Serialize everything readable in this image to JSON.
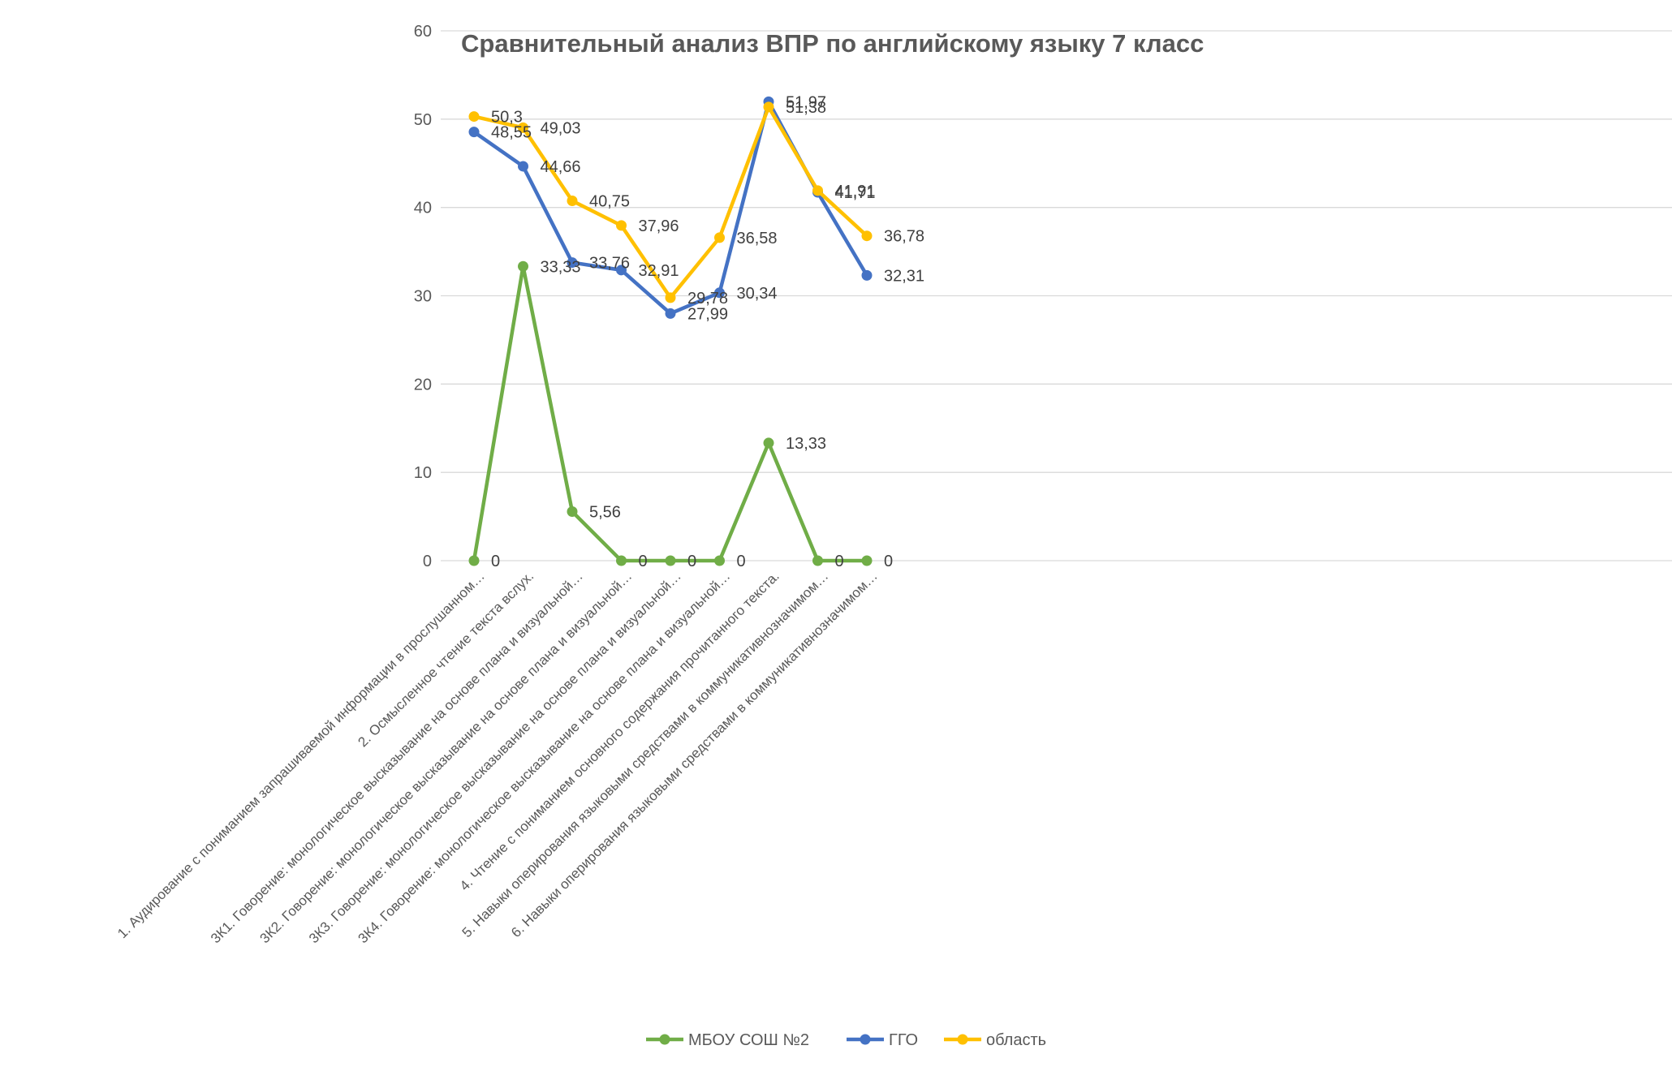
{
  "chart_data": {
    "type": "line",
    "title": "Сравнительный анализ ВПР по английскому языку 7 класс",
    "xlabel": "",
    "ylabel": "",
    "ylim": [
      0,
      60
    ],
    "yticks": [
      "0",
      "10",
      "20",
      "30",
      "40",
      "50",
      "60"
    ],
    "grid": true,
    "legend_position": "bottom",
    "categories": [
      "1. Аудирование с пониманием запрашиваемой информации в прослушанном…",
      "2. Осмысленное чтение текста вслух.",
      "3К1. Говорение: монологическое высказывание на основе плана и визуальной…",
      "3К2. Говорение: монологическое высказывание на основе плана и визуальной…",
      "3К3. Говорение: монологическое высказывание на основе плана и визуальной…",
      "3К4. Говорение: монологическое высказывание на основе плана и визуальной…",
      "4. Чтение с пониманием основного содержания прочитанного текста.",
      "5. Навыки оперирования языковыми средствами в коммуникативнозначимом…",
      "6. Навыки оперирования языковыми средствами в коммуникативнозначимом…"
    ],
    "series": [
      {
        "name": "МБОУ СОШ №2",
        "color": "#70ad47",
        "values": [
          0,
          33.33,
          5.56,
          0,
          0,
          0,
          13.33,
          0,
          0
        ],
        "labels": [
          "0",
          "33,33",
          "5,56",
          "0",
          "0",
          "0",
          "13,33",
          "0",
          "0"
        ]
      },
      {
        "name": "ГГО",
        "color": "#4472c4",
        "values": [
          48.55,
          44.66,
          33.76,
          32.91,
          27.99,
          30.34,
          51.97,
          41.71,
          32.31
        ],
        "labels": [
          "48,55",
          "44,66",
          "33,76",
          "32,91",
          "27,99",
          "30,34",
          "51,97",
          "41,71",
          "32,31"
        ]
      },
      {
        "name": "область",
        "color": "#ffc000",
        "values": [
          50.3,
          49.03,
          40.75,
          37.96,
          29.78,
          36.58,
          51.38,
          41.91,
          36.78
        ],
        "labels": [
          "50,3",
          "49,03",
          "40,75",
          "37,96",
          "29,78",
          "36,58",
          "51,38",
          "41,91",
          "36,78"
        ]
      }
    ]
  }
}
